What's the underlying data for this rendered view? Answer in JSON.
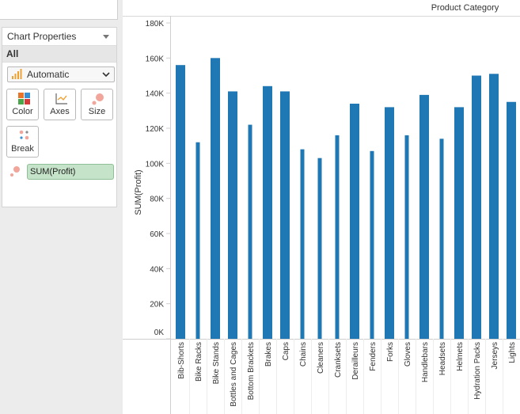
{
  "panel": {
    "title": "Chart Properties",
    "filter": "All",
    "mark_type": "Automatic",
    "buttons": {
      "color": "Color",
      "axes": "Axes",
      "size": "Size",
      "break": "Break"
    },
    "measure_pill": "SUM(Profit)"
  },
  "chart_data": {
    "type": "bar",
    "column_header": "Product Category",
    "ylabel": "SUM(Profit)",
    "ylim": [
      0,
      180000
    ],
    "yticks": [
      {
        "value": 0,
        "label": "0K"
      },
      {
        "value": 20000,
        "label": "20K"
      },
      {
        "value": 40000,
        "label": "40K"
      },
      {
        "value": 60000,
        "label": "60K"
      },
      {
        "value": 80000,
        "label": "80K"
      },
      {
        "value": 100000,
        "label": "100K"
      },
      {
        "value": 120000,
        "label": "120K"
      },
      {
        "value": 140000,
        "label": "140K"
      },
      {
        "value": 160000,
        "label": "160K"
      },
      {
        "value": 180000,
        "label": "180K"
      }
    ],
    "bar_color": "#1f77b4",
    "categories": [
      "Bib-Shorts",
      "Bike Racks",
      "Bike Stands",
      "Bottles and Cages",
      "Bottom Brackets",
      "Brakes",
      "Caps",
      "Chains",
      "Cleaners",
      "Cranksets",
      "Derailleurs",
      "Fenders",
      "Forks",
      "Gloves",
      "Handlebars",
      "Headsets",
      "Helmets",
      "Hydration Packs",
      "Jerseys",
      "Lights"
    ],
    "values": [
      156000,
      112000,
      160000,
      141000,
      122000,
      144000,
      141000,
      108000,
      103000,
      116000,
      134000,
      107000,
      132000,
      116000,
      139000,
      114000,
      132000,
      150000,
      151000,
      135000
    ],
    "wide": [
      true,
      false,
      true,
      true,
      false,
      true,
      true,
      false,
      false,
      false,
      true,
      false,
      true,
      false,
      true,
      false,
      true,
      true,
      true,
      true
    ]
  }
}
